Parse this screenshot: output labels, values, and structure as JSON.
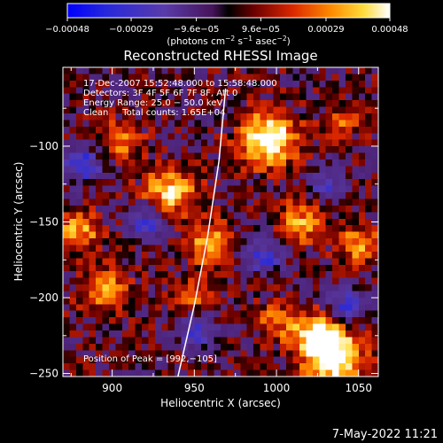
{
  "chart_data": {
    "type": "heatmap",
    "title": "Reconstructed RHESSI Image",
    "xlabel": "Heliocentric X (arcsec)",
    "ylabel": "Heliocentric Y (arcsec)",
    "xlim": [
      870,
      1062
    ],
    "ylim": [
      -252,
      -48
    ],
    "x_ticks": [
      {
        "value": 900,
        "label": "900"
      },
      {
        "value": 950,
        "label": "950"
      },
      {
        "value": 1000,
        "label": "1000"
      },
      {
        "value": 1050,
        "label": "1050"
      }
    ],
    "y_ticks": [
      {
        "value": -100,
        "label": "−100"
      },
      {
        "value": -150,
        "label": "−150"
      },
      {
        "value": -200,
        "label": "−200"
      },
      {
        "value": -250,
        "label": "−250"
      }
    ],
    "colorbar": {
      "range": [
        -0.00048,
        0.00048
      ],
      "tick_values": [
        -0.00048,
        -0.00029,
        -9.6e-05,
        9.6e-05,
        0.00029,
        0.00048
      ],
      "tick_labels": [
        "−0.00048",
        "−0.00029",
        "−9.6e−05",
        "9.6e−05",
        "0.00029",
        "0.00048"
      ],
      "unit_parts": [
        "(photons cm",
        "−2",
        " s",
        "−1",
        " asec",
        "−2",
        ")"
      ]
    },
    "info_lines": [
      "17‐Dec‐2007 15:52:48.000 to 15:58:48.000",
      "Detectors: 3F 4F 5F 6F 7F 8F, Att 0",
      "Energy Range: 25.0 − 50.0 keV",
      "Clean     Total counts: 1.65E+04"
    ],
    "peak_label": "Position of Peak = [992,−105]",
    "limb_curve": [
      [
        940,
        -252
      ],
      [
        950,
        -205
      ],
      [
        958,
        -160
      ],
      [
        965,
        -110
      ],
      [
        969,
        -62
      ]
    ],
    "hot_sources": [
      {
        "x": 995,
        "y": -95,
        "amp": 1.3,
        "radius": 12
      },
      {
        "x": 1035,
        "y": -240,
        "amp": 1.25,
        "radius": 12
      },
      {
        "x": 1025,
        "y": -225,
        "amp": 1.1,
        "radius": 10
      },
      {
        "x": 935,
        "y": -130,
        "amp": 0.95,
        "radius": 11
      },
      {
        "x": 960,
        "y": -165,
        "amp": 0.8,
        "radius": 10
      },
      {
        "x": 880,
        "y": -155,
        "amp": 0.8,
        "radius": 9
      },
      {
        "x": 895,
        "y": -195,
        "amp": 0.75,
        "radius": 10
      },
      {
        "x": 1015,
        "y": -150,
        "amp": 0.7,
        "radius": 10
      },
      {
        "x": 1050,
        "y": -165,
        "amp": 0.7,
        "radius": 9
      },
      {
        "x": 905,
        "y": -95,
        "amp": 0.65,
        "radius": 9
      },
      {
        "x": 1000,
        "y": -215,
        "amp": 0.55,
        "radius": 9
      },
      {
        "x": 950,
        "y": -200,
        "amp": 0.55,
        "radius": 8
      },
      {
        "x": 1040,
        "y": -85,
        "amp": 0.5,
        "radius": 8
      }
    ],
    "cold_sources": [
      {
        "x": 882,
        "y": -112,
        "amp": 0.9,
        "radius": 8
      },
      {
        "x": 922,
        "y": -150,
        "amp": 0.85,
        "radius": 8
      },
      {
        "x": 952,
        "y": -222,
        "amp": 0.9,
        "radius": 8
      },
      {
        "x": 992,
        "y": -172,
        "amp": 0.85,
        "radius": 8
      },
      {
        "x": 1042,
        "y": -205,
        "amp": 0.85,
        "radius": 8
      },
      {
        "x": 1030,
        "y": -125,
        "amp": 0.7,
        "radius": 8
      }
    ],
    "timestamp": "7‐May‐2022 11:21"
  }
}
